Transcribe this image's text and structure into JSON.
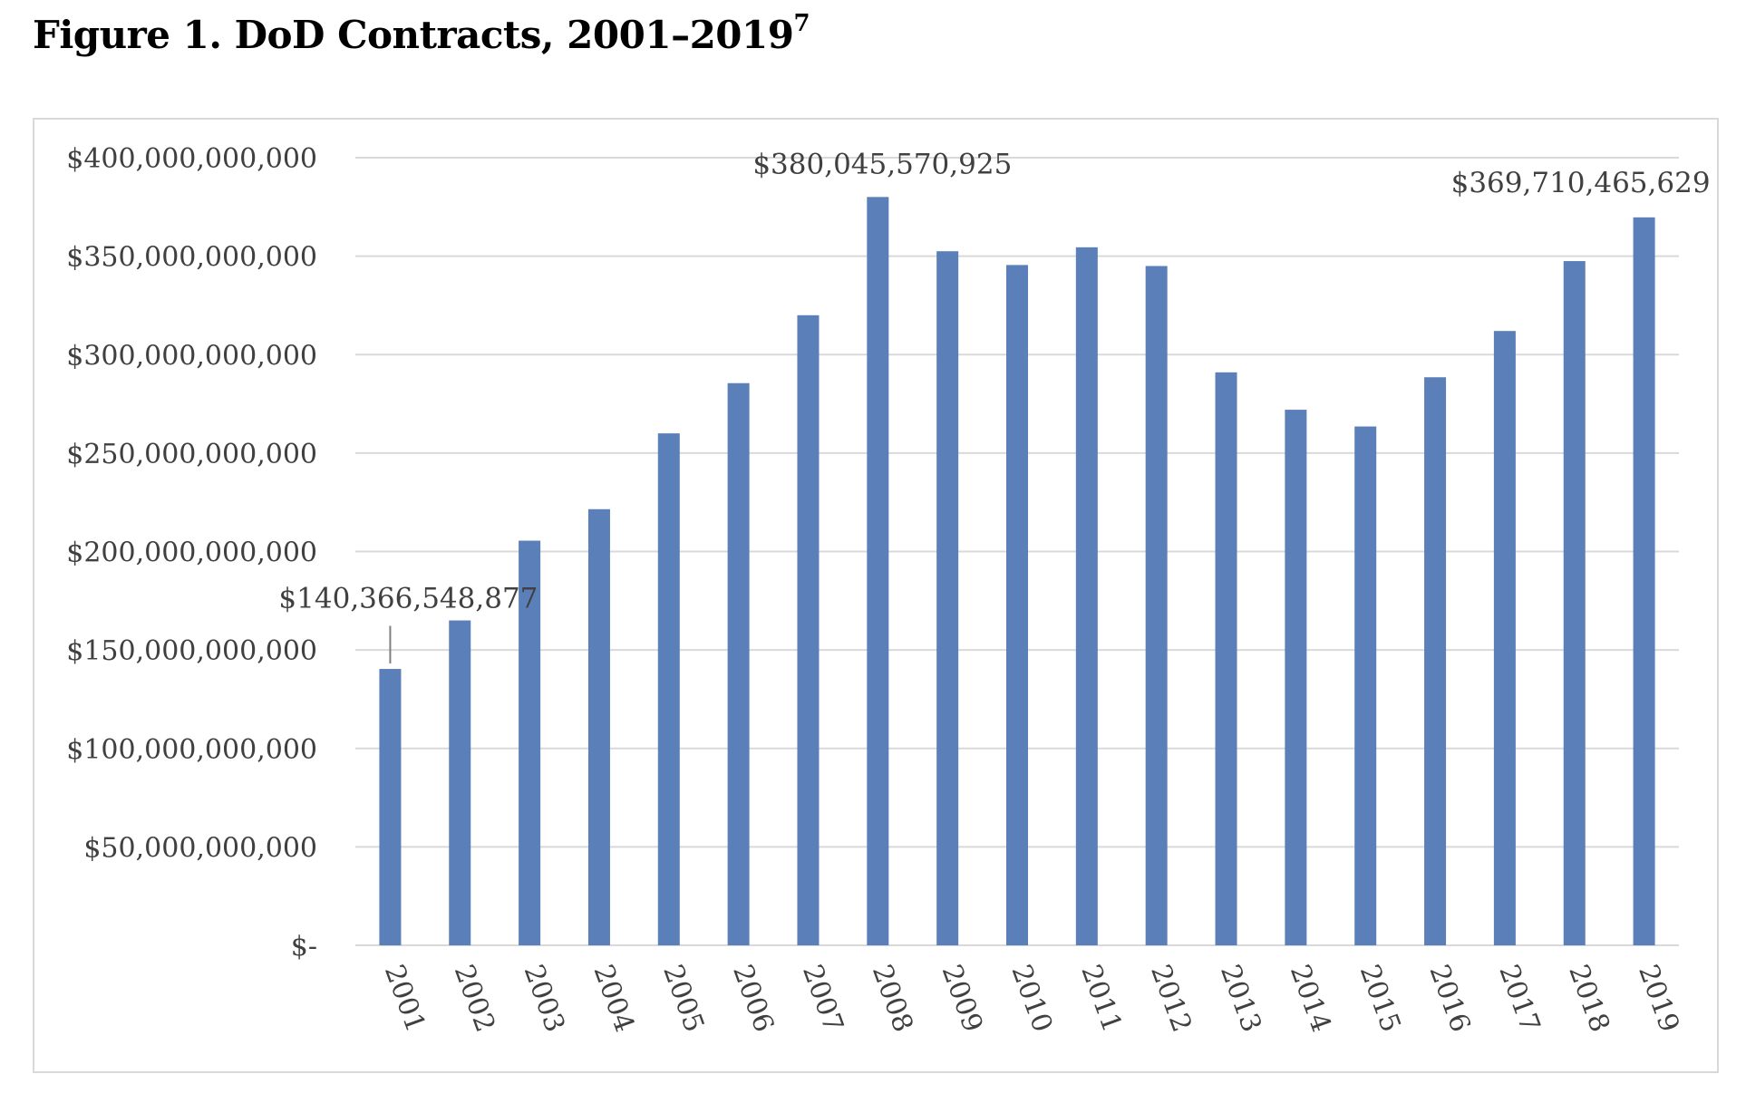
{
  "figure": {
    "title": "Figure 1. DoD Contracts, 2001–2019",
    "footnote": "7"
  },
  "chart_data": {
    "type": "bar",
    "title": "",
    "xlabel": "",
    "ylabel": "",
    "categories": [
      "2001",
      "2002",
      "2003",
      "2004",
      "2005",
      "2006",
      "2007",
      "2008",
      "2009",
      "2010",
      "2011",
      "2012",
      "2013",
      "2014",
      "2015",
      "2016",
      "2017",
      "2018",
      "2019"
    ],
    "series": [
      {
        "values": [
          140366548877,
          165000000000,
          205500000000,
          221500000000,
          260000000000,
          285500000000,
          320000000000,
          380045570925,
          352500000000,
          345500000000,
          354500000000,
          345000000000,
          291000000000,
          272000000000,
          263500000000,
          288500000000,
          312000000000,
          347500000000,
          369710465629
        ],
        "color": "#5b7fb8"
      }
    ],
    "ylim": [
      0,
      400000000000
    ],
    "yticks": [
      0,
      50000000000,
      100000000000,
      150000000000,
      200000000000,
      250000000000,
      300000000000,
      350000000000,
      400000000000
    ],
    "ytick_labels": [
      "$-",
      "$50,000,000,000",
      "$100,000,000,000",
      "$150,000,000,000",
      "$200,000,000,000",
      "$250,000,000,000",
      "$300,000,000,000",
      "$350,000,000,000",
      "$400,000,000,000"
    ],
    "data_labels": [
      {
        "category": "2001",
        "text": "$140,366,548,877"
      },
      {
        "category": "2008",
        "text": "$380,045,570,925"
      },
      {
        "category": "2019",
        "text": "$369,710,465,629"
      }
    ],
    "grid": true,
    "legend": "none",
    "colors": {
      "bar": "#5b7fb8",
      "grid": "#d9d9d9",
      "text": "#404040"
    }
  }
}
